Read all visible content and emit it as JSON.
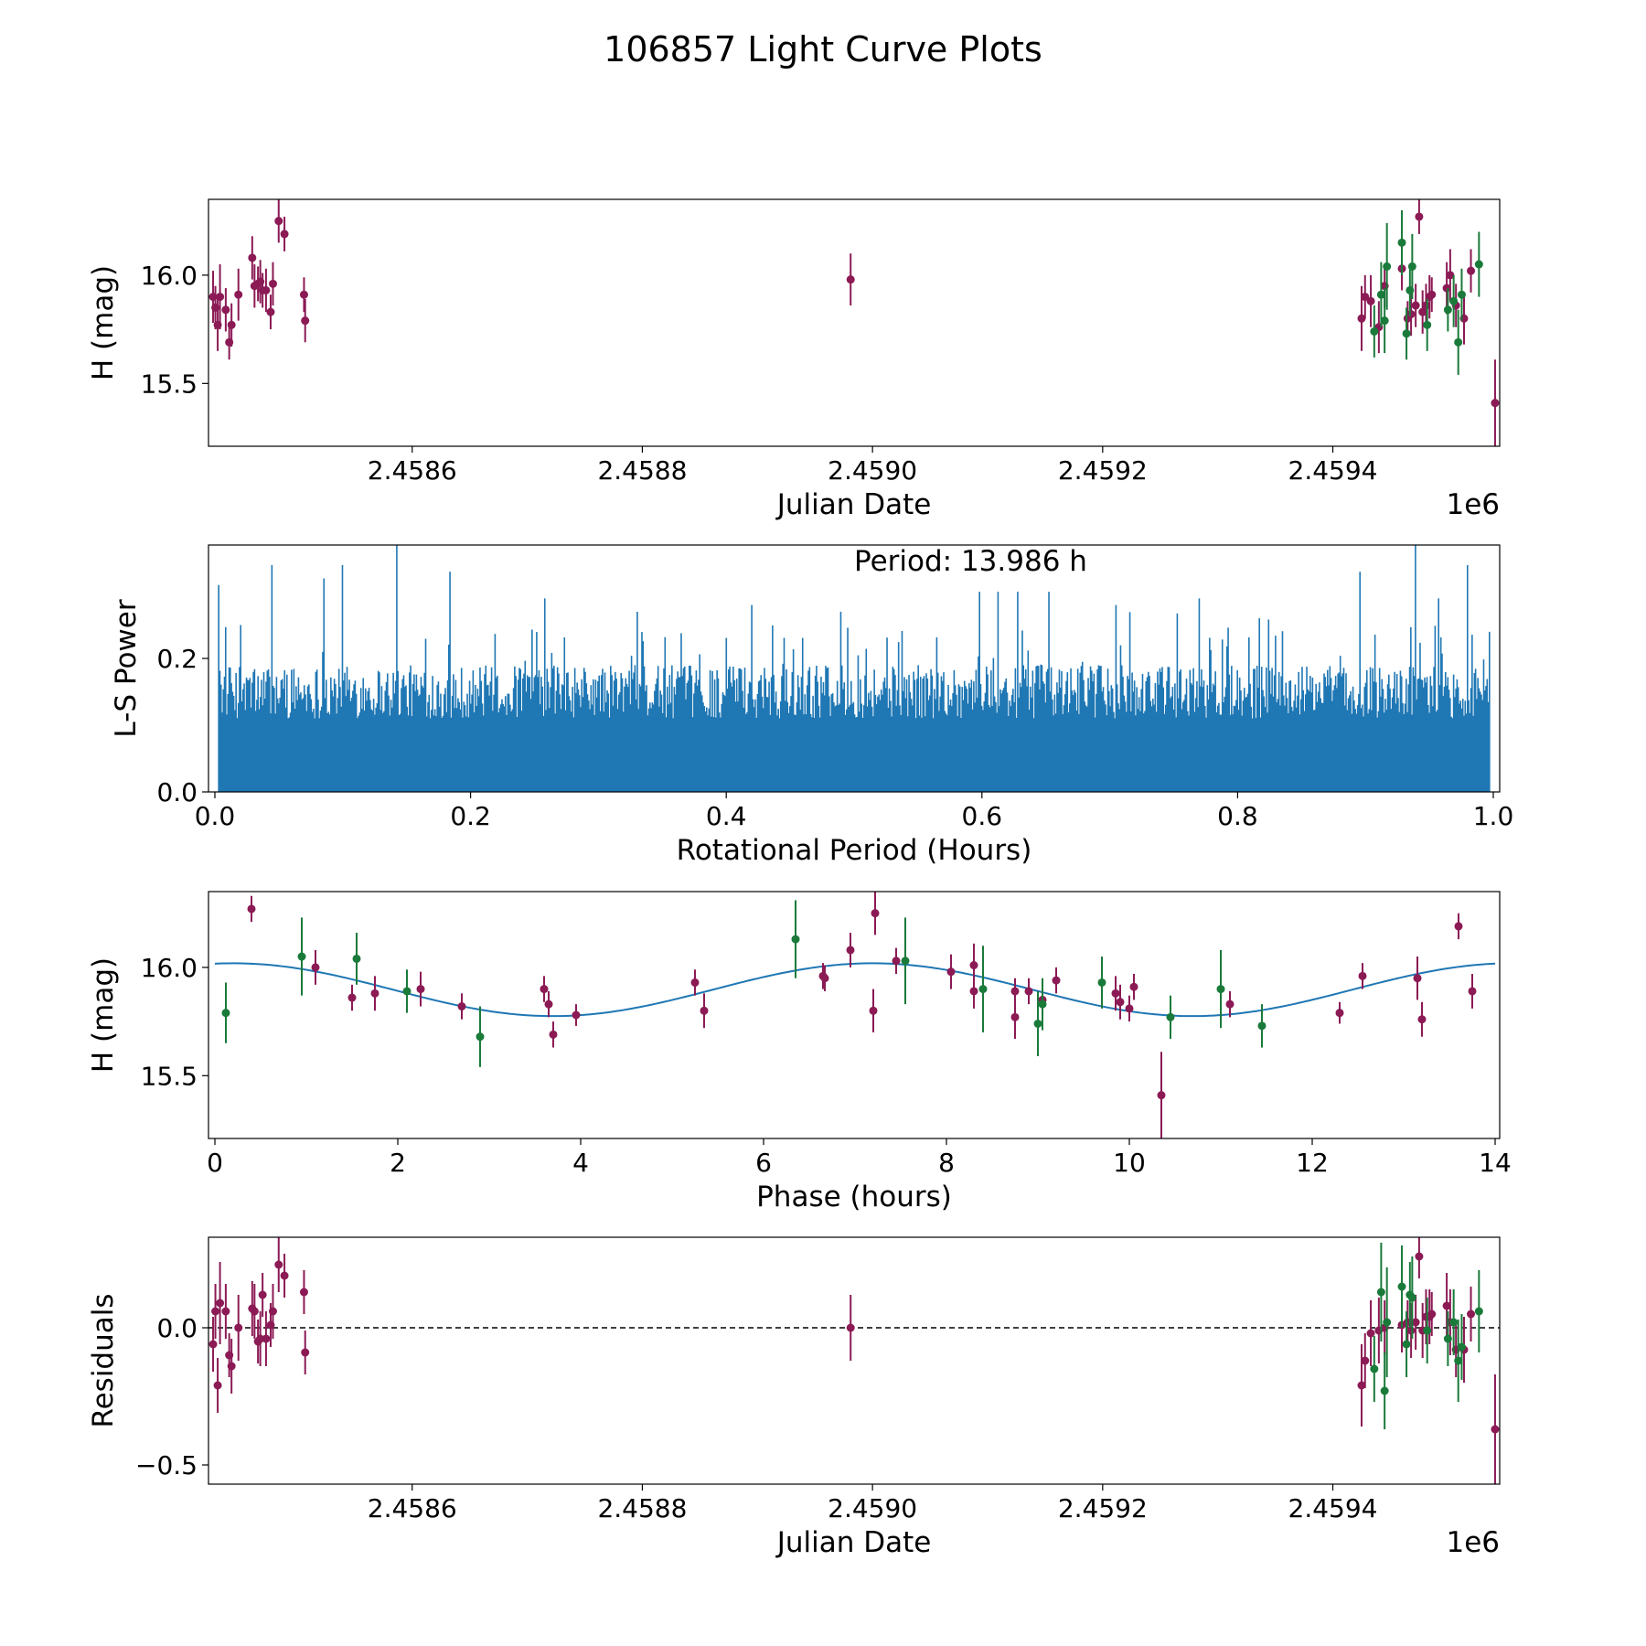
{
  "figure_title": "106857 Light Curve Plots",
  "colors": {
    "purple": "#8B1A55",
    "green": "#1A7A3A",
    "blue": "#1F77B4"
  },
  "chart_data": [
    {
      "id": "lc",
      "type": "scatter",
      "xlabel": "Julian Date",
      "ylabel": "H (mag)",
      "xlim": [
        2458423,
        2459545
      ],
      "ylim": [
        15.21,
        16.35
      ],
      "xticks": [
        2458600,
        2458800,
        2459000,
        2459200,
        2459400
      ],
      "xtick_labels": [
        "2.4586",
        "2.4588",
        "2.4590",
        "2.4592",
        "2.4594"
      ],
      "yticks": [
        15.5,
        16.0
      ],
      "ytick_labels": [
        "15.5",
        "16.0"
      ],
      "offset_text": "1e6",
      "series": [
        {
          "name": "purple",
          "color": "#8B1A55",
          "points": [
            [
              2458427,
              15.9,
              0.12
            ],
            [
              2458429,
              15.85,
              0.1
            ],
            [
              2458431,
              15.77,
              0.12
            ],
            [
              2458433,
              15.9,
              0.15
            ],
            [
              2458438,
              15.84,
              0.1
            ],
            [
              2458441,
              15.69,
              0.08
            ],
            [
              2458443,
              15.77,
              0.1
            ],
            [
              2458449,
              15.91,
              0.12
            ],
            [
              2458461,
              16.08,
              0.1
            ],
            [
              2458463,
              15.95,
              0.1
            ],
            [
              2458466,
              15.96,
              0.08
            ],
            [
              2458468,
              15.97,
              0.1
            ],
            [
              2458470,
              15.93,
              0.08
            ],
            [
              2458473,
              15.93,
              0.1
            ],
            [
              2458477,
              15.83,
              0.08
            ],
            [
              2458479,
              15.96,
              0.1
            ],
            [
              2458484,
              16.25,
              0.1
            ],
            [
              2458489,
              16.19,
              0.08
            ],
            [
              2458506,
              15.91,
              0.08
            ],
            [
              2458507,
              15.79,
              0.1
            ],
            [
              2458981,
              15.98,
              0.12
            ],
            [
              2459425,
              15.8,
              0.15
            ],
            [
              2459428,
              15.9,
              0.1
            ],
            [
              2459433,
              15.88,
              0.12
            ],
            [
              2459440,
              15.76,
              0.12
            ],
            [
              2459445,
              15.95,
              0.1
            ],
            [
              2459460,
              16.03,
              0.1
            ],
            [
              2459465,
              15.8,
              0.08
            ],
            [
              2459468,
              15.82,
              0.1
            ],
            [
              2459472,
              15.86,
              0.1
            ],
            [
              2459475,
              16.27,
              0.08
            ],
            [
              2459478,
              15.83,
              0.1
            ],
            [
              2459481,
              15.86,
              0.1
            ],
            [
              2459484,
              15.9,
              0.1
            ],
            [
              2459486,
              15.91,
              0.08
            ],
            [
              2459499,
              15.94,
              0.12
            ],
            [
              2459502,
              16.0,
              0.12
            ],
            [
              2459507,
              15.86,
              0.1
            ],
            [
              2459514,
              15.8,
              0.12
            ],
            [
              2459520,
              16.02,
              0.1
            ],
            [
              2459541,
              15.41,
              0.2
            ]
          ]
        },
        {
          "name": "green",
          "color": "#1A7A3A",
          "points": [
            [
              2459436,
              15.74,
              0.12
            ],
            [
              2459442,
              15.91,
              0.15
            ],
            [
              2459445,
              15.79,
              0.15
            ],
            [
              2459447,
              16.04,
              0.2
            ],
            [
              2459460,
              16.15,
              0.15
            ],
            [
              2459464,
              15.73,
              0.12
            ],
            [
              2459467,
              15.93,
              0.12
            ],
            [
              2459469,
              16.04,
              0.15
            ],
            [
              2459482,
              15.77,
              0.12
            ],
            [
              2459500,
              15.84,
              0.1
            ],
            [
              2459505,
              15.88,
              0.12
            ],
            [
              2459509,
              15.69,
              0.15
            ],
            [
              2459512,
              15.91,
              0.12
            ],
            [
              2459527,
              16.05,
              0.15
            ]
          ]
        }
      ]
    },
    {
      "id": "ls",
      "type": "line",
      "xlabel": "Rotational Period (Hours)",
      "ylabel": "L-S Power",
      "xlim": [
        -0.005,
        1.005
      ],
      "ylim": [
        0,
        0.37
      ],
      "xticks": [
        0.0,
        0.2,
        0.4,
        0.6,
        0.8,
        1.0
      ],
      "xtick_labels": [
        "0.0",
        "0.2",
        "0.4",
        "0.6",
        "0.8",
        "1.0"
      ],
      "yticks": [
        0.0,
        0.2
      ],
      "ytick_labels": [
        "0.0",
        "0.2"
      ],
      "annotation": "Period: 13.986 h",
      "series": [
        {
          "name": "power",
          "color": "#1F77B4",
          "base_level": 0.11,
          "tall_peaks": [
            [
              0.003,
              0.31
            ],
            [
              0.045,
              0.34
            ],
            [
              0.085,
              0.32
            ],
            [
              0.1,
              0.34
            ],
            [
              0.142,
              0.37
            ],
            [
              0.184,
              0.33
            ],
            [
              0.258,
              0.29
            ],
            [
              0.33,
              0.27
            ],
            [
              0.42,
              0.28
            ],
            [
              0.49,
              0.27
            ],
            [
              0.598,
              0.3
            ],
            [
              0.613,
              0.3
            ],
            [
              0.628,
              0.3
            ],
            [
              0.652,
              0.3
            ],
            [
              0.705,
              0.28
            ],
            [
              0.77,
              0.29
            ],
            [
              0.896,
              0.33
            ],
            [
              0.939,
              0.37
            ],
            [
              0.957,
              0.29
            ],
            [
              0.98,
              0.34
            ],
            [
              0.997,
              0.24
            ]
          ],
          "mid_peak_range": [
            0.18,
            0.27
          ]
        }
      ]
    },
    {
      "id": "phase",
      "type": "scatter",
      "xlabel": "Phase (hours)",
      "ylabel": "H (mag)",
      "xlim": [
        -0.07,
        14.05
      ],
      "ylim": [
        15.21,
        16.35
      ],
      "xticks": [
        0,
        2,
        4,
        6,
        8,
        10,
        12,
        14
      ],
      "xtick_labels": [
        "0",
        "2",
        "4",
        "6",
        "8",
        "10",
        "12",
        "14"
      ],
      "yticks": [
        15.5,
        16.0
      ],
      "ytick_labels": [
        "15.5",
        "16.0"
      ],
      "model": {
        "color": "#1F77B4",
        "mean": 15.897,
        "amplitude": 0.122,
        "period": 6.993,
        "peak_phase": 0.2
      },
      "series": [
        {
          "name": "purple",
          "color": "#8B1A55",
          "points": [
            [
              0.4,
              16.27,
              0.06
            ],
            [
              1.1,
              16.0,
              0.08
            ],
            [
              1.5,
              15.86,
              0.06
            ],
            [
              1.75,
              15.88,
              0.08
            ],
            [
              2.25,
              15.9,
              0.08
            ],
            [
              2.7,
              15.82,
              0.06
            ],
            [
              3.6,
              15.9,
              0.06
            ],
            [
              3.65,
              15.83,
              0.06
            ],
            [
              3.7,
              15.69,
              0.06
            ],
            [
              3.95,
              15.78,
              0.05
            ],
            [
              5.25,
              15.93,
              0.06
            ],
            [
              5.35,
              15.8,
              0.08
            ],
            [
              6.65,
              15.96,
              0.06
            ],
            [
              6.67,
              15.95,
              0.06
            ],
            [
              6.95,
              16.08,
              0.08
            ],
            [
              7.2,
              15.8,
              0.1
            ],
            [
              7.22,
              16.25,
              0.1
            ],
            [
              7.45,
              16.03,
              0.06
            ],
            [
              8.05,
              15.98,
              0.08
            ],
            [
              8.3,
              16.01,
              0.1
            ],
            [
              8.3,
              15.89,
              0.08
            ],
            [
              8.75,
              15.89,
              0.06
            ],
            [
              8.75,
              15.77,
              0.1
            ],
            [
              8.9,
              15.89,
              0.06
            ],
            [
              9.05,
              15.85,
              0.08
            ],
            [
              9.2,
              15.94,
              0.06
            ],
            [
              9.85,
              15.88,
              0.08
            ],
            [
              9.9,
              15.84,
              0.08
            ],
            [
              10.0,
              15.81,
              0.06
            ],
            [
              10.05,
              15.91,
              0.06
            ],
            [
              10.35,
              15.41,
              0.2
            ],
            [
              11.1,
              15.83,
              0.06
            ],
            [
              12.3,
              15.79,
              0.05
            ],
            [
              12.55,
              15.96,
              0.06
            ],
            [
              13.15,
              15.95,
              0.1
            ],
            [
              13.2,
              15.76,
              0.08
            ],
            [
              13.6,
              16.19,
              0.06
            ],
            [
              13.75,
              15.89,
              0.08
            ]
          ]
        },
        {
          "name": "green",
          "color": "#1A7A3A",
          "points": [
            [
              0.12,
              15.79,
              0.14
            ],
            [
              0.95,
              16.05,
              0.18
            ],
            [
              1.55,
              16.04,
              0.12
            ],
            [
              2.1,
              15.89,
              0.1
            ],
            [
              2.9,
              15.68,
              0.14
            ],
            [
              6.35,
              16.13,
              0.18
            ],
            [
              7.55,
              16.03,
              0.2
            ],
            [
              8.4,
              15.9,
              0.2
            ],
            [
              9.0,
              15.74,
              0.15
            ],
            [
              9.05,
              15.83,
              0.12
            ],
            [
              9.7,
              15.93,
              0.12
            ],
            [
              10.45,
              15.77,
              0.1
            ],
            [
              11.0,
              15.9,
              0.18
            ],
            [
              11.45,
              15.73,
              0.1
            ]
          ]
        }
      ]
    },
    {
      "id": "res",
      "type": "scatter",
      "xlabel": "Julian Date",
      "ylabel": "Residuals",
      "xlim": [
        2458423,
        2459545
      ],
      "ylim": [
        -0.57,
        0.33
      ],
      "xticks": [
        2458600,
        2458800,
        2459000,
        2459200,
        2459400
      ],
      "xtick_labels": [
        "2.4586",
        "2.4588",
        "2.4590",
        "2.4592",
        "2.4594"
      ],
      "yticks": [
        -0.5,
        0.0
      ],
      "ytick_labels": [
        "−0.5",
        "0.0"
      ],
      "offset_text": "1e6",
      "reference_line": 0.0,
      "series": [
        {
          "name": "purple",
          "color": "#8B1A55",
          "points": [
            [
              2458427,
              -0.06,
              0.1
            ],
            [
              2458429,
              0.06,
              0.1
            ],
            [
              2458431,
              -0.21,
              0.1
            ],
            [
              2458433,
              0.09,
              0.15
            ],
            [
              2458438,
              0.06,
              0.1
            ],
            [
              2458441,
              -0.1,
              0.08
            ],
            [
              2458443,
              -0.14,
              0.1
            ],
            [
              2458449,
              0.0,
              0.12
            ],
            [
              2458461,
              0.07,
              0.1
            ],
            [
              2458463,
              0.06,
              0.1
            ],
            [
              2458466,
              -0.05,
              0.08
            ],
            [
              2458468,
              -0.04,
              0.1
            ],
            [
              2458470,
              0.12,
              0.08
            ],
            [
              2458473,
              -0.04,
              0.1
            ],
            [
              2458477,
              0.01,
              0.08
            ],
            [
              2458479,
              0.06,
              0.1
            ],
            [
              2458484,
              0.23,
              0.1
            ],
            [
              2458489,
              0.19,
              0.08
            ],
            [
              2458506,
              0.13,
              0.08
            ],
            [
              2458507,
              -0.09,
              0.08
            ],
            [
              2458981,
              0.0,
              0.12
            ],
            [
              2459425,
              -0.21,
              0.15
            ],
            [
              2459428,
              -0.12,
              0.1
            ],
            [
              2459433,
              -0.02,
              0.12
            ],
            [
              2459440,
              -0.01,
              0.12
            ],
            [
              2459445,
              0.0,
              0.1
            ],
            [
              2459460,
              0.01,
              0.1
            ],
            [
              2459465,
              0.02,
              0.08
            ],
            [
              2459468,
              -0.01,
              0.1
            ],
            [
              2459472,
              0.02,
              0.1
            ],
            [
              2459475,
              0.26,
              0.08
            ],
            [
              2459478,
              -0.01,
              0.1
            ],
            [
              2459481,
              0.04,
              0.1
            ],
            [
              2459484,
              0.04,
              0.1
            ],
            [
              2459486,
              0.05,
              0.08
            ],
            [
              2459499,
              0.08,
              0.12
            ],
            [
              2459502,
              0.02,
              0.12
            ],
            [
              2459507,
              -0.08,
              0.1
            ],
            [
              2459514,
              -0.08,
              0.12
            ],
            [
              2459520,
              0.05,
              0.1
            ],
            [
              2459541,
              -0.37,
              0.2
            ]
          ]
        },
        {
          "name": "green",
          "color": "#1A7A3A",
          "points": [
            [
              2459436,
              -0.15,
              0.12
            ],
            [
              2459442,
              0.13,
              0.18
            ],
            [
              2459445,
              -0.23,
              0.14
            ],
            [
              2459447,
              0.02,
              0.2
            ],
            [
              2459460,
              0.15,
              0.15
            ],
            [
              2459464,
              -0.06,
              0.12
            ],
            [
              2459467,
              0.12,
              0.12
            ],
            [
              2459469,
              0.11,
              0.15
            ],
            [
              2459482,
              -0.01,
              0.12
            ],
            [
              2459500,
              -0.04,
              0.1
            ],
            [
              2459505,
              0.02,
              0.12
            ],
            [
              2459509,
              -0.12,
              0.15
            ],
            [
              2459512,
              -0.07,
              0.12
            ],
            [
              2459527,
              0.06,
              0.15
            ]
          ]
        }
      ]
    }
  ]
}
